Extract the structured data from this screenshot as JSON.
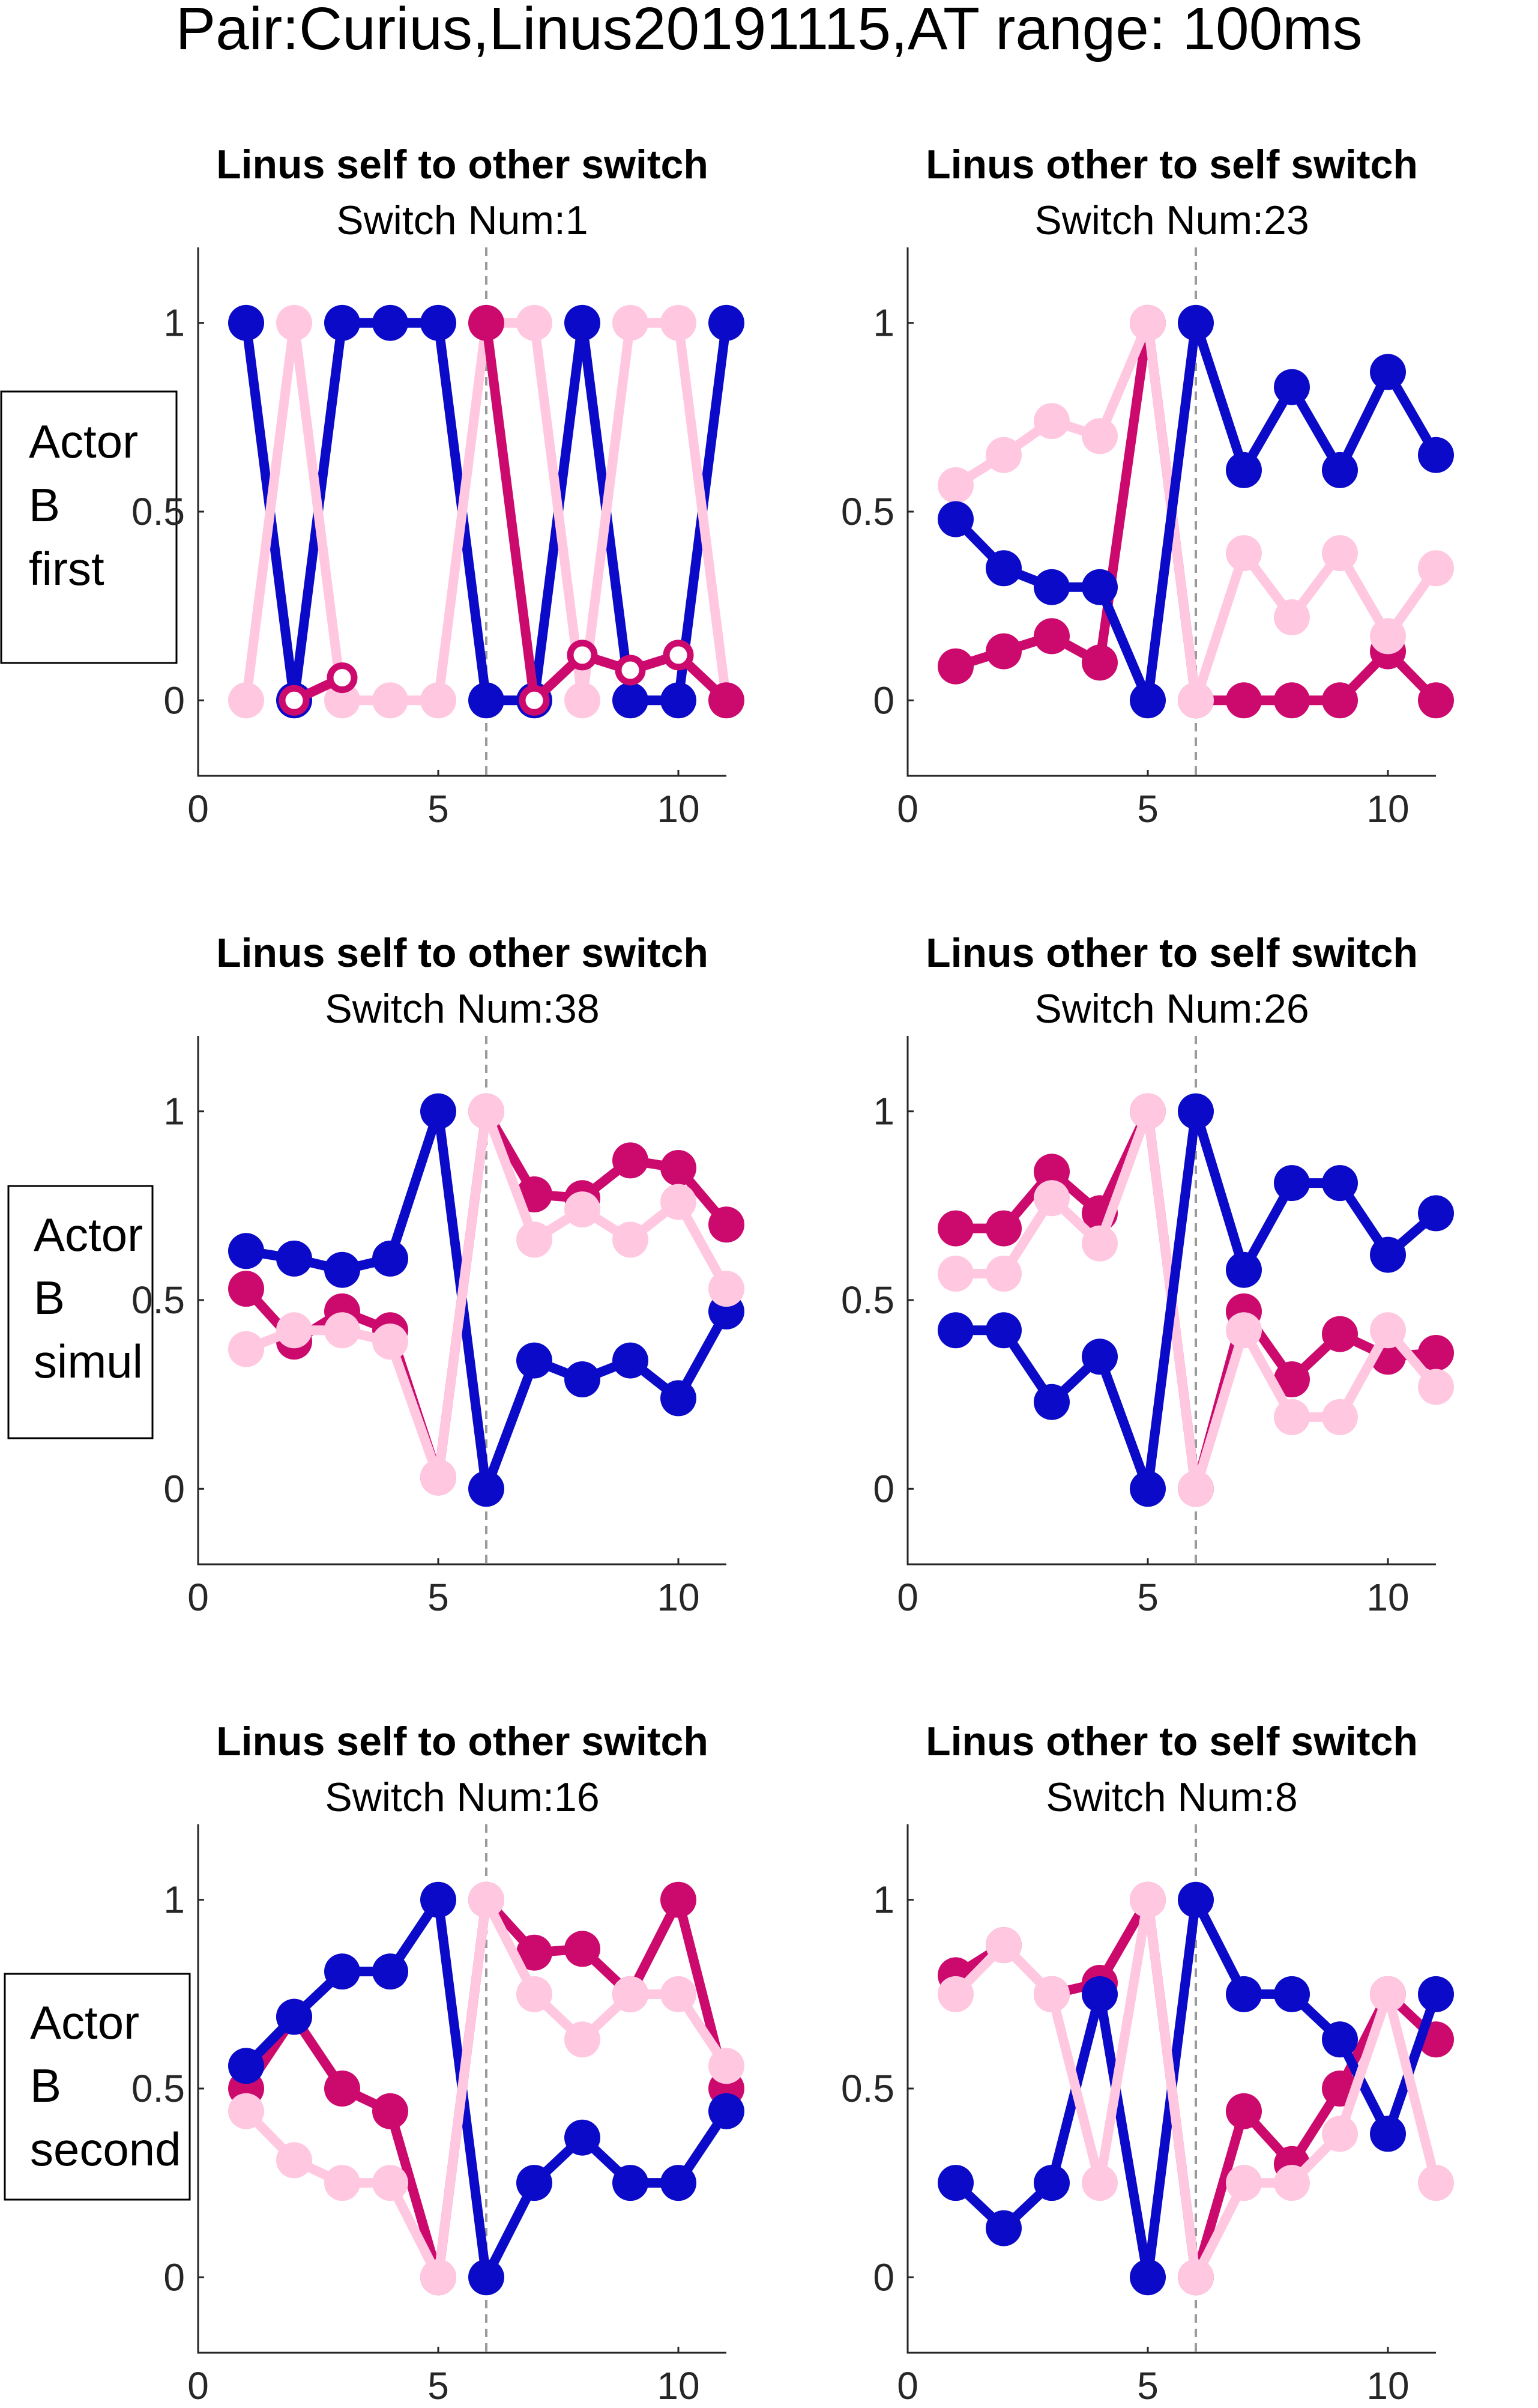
{
  "figure_title": "Pair:Curius,Linus20191115,AT range: 100ms",
  "row_labels": [
    [
      "Actor",
      "B",
      "first"
    ],
    [
      "Actor",
      "B",
      "simul"
    ],
    [
      "Actor",
      "B",
      "second"
    ]
  ],
  "colors": {
    "blue": "#0a0ac8",
    "magenta": "#cc0a6e",
    "pink": "#ffc8e0",
    "divider": "#9a9a9a"
  },
  "chart_data": [
    {
      "type": "line",
      "title": "Linus self to other switch",
      "subtitle": "Switch Num:1",
      "xlim": [
        0,
        11
      ],
      "ylim": [
        -0.2,
        1.2
      ],
      "xticks": [
        0,
        5,
        10
      ],
      "yticks": [
        "0",
        "0.5",
        "1"
      ],
      "x": [
        1,
        2,
        3,
        4,
        5,
        6,
        7,
        8,
        9,
        10,
        11
      ],
      "series": [
        {
          "color": "blue",
          "values": [
            1,
            0,
            1,
            1,
            1,
            0,
            0,
            1,
            0,
            0,
            1
          ]
        },
        {
          "color": "pink",
          "values": [
            0,
            1,
            0,
            0,
            0,
            1,
            1,
            0,
            1,
            1,
            0
          ]
        },
        {
          "color": "magenta",
          "values": [
            null,
            0,
            0.06,
            null,
            null,
            1,
            0,
            0.12,
            0.08,
            0.12,
            0
          ],
          "hollow_points": [
            2,
            3,
            7,
            8,
            9,
            10
          ]
        }
      ]
    },
    {
      "type": "line",
      "title": "Linus other to self switch",
      "subtitle": "Switch Num:23",
      "xlim": [
        0,
        11
      ],
      "ylim": [
        -0.2,
        1.2
      ],
      "xticks": [
        0,
        5,
        10
      ],
      "yticks": [
        "0",
        "0.5",
        "1"
      ],
      "x": [
        1,
        2,
        3,
        4,
        5,
        6,
        7,
        8,
        9,
        10,
        11
      ],
      "series": [
        {
          "color": "magenta",
          "values": [
            0.09,
            0.13,
            0.17,
            0.1,
            1,
            0,
            0,
            0,
            0,
            0.13,
            0
          ]
        },
        {
          "color": "pink",
          "values": [
            0.57,
            0.65,
            0.74,
            0.7,
            1,
            0,
            0.39,
            0.22,
            0.39,
            0.17,
            0.35
          ]
        },
        {
          "color": "blue",
          "values": [
            0.48,
            0.35,
            0.3,
            0.3,
            0,
            1,
            0.61,
            0.83,
            0.61,
            0.87,
            0.65
          ]
        }
      ]
    },
    {
      "type": "line",
      "title": "Linus self to other switch",
      "subtitle": "Switch Num:38",
      "xlim": [
        0,
        11
      ],
      "ylim": [
        -0.2,
        1.2
      ],
      "xticks": [
        0,
        5,
        10
      ],
      "yticks": [
        "0",
        "0.5",
        "1"
      ],
      "x": [
        1,
        2,
        3,
        4,
        5,
        6,
        7,
        8,
        9,
        10,
        11
      ],
      "series": [
        {
          "color": "magenta",
          "values": [
            0.53,
            0.39,
            0.47,
            0.42,
            0.03,
            1,
            0.78,
            0.77,
            0.87,
            0.85,
            0.7
          ]
        },
        {
          "color": "blue",
          "values": [
            0.63,
            0.61,
            0.58,
            0.61,
            1,
            0,
            0.34,
            0.29,
            0.34,
            0.24,
            0.47
          ]
        },
        {
          "color": "pink",
          "values": [
            0.37,
            0.42,
            0.42,
            0.39,
            0.03,
            1,
            0.66,
            0.74,
            0.66,
            0.76,
            0.53
          ]
        }
      ]
    },
    {
      "type": "line",
      "title": "Linus other to self switch",
      "subtitle": "Switch Num:26",
      "xlim": [
        0,
        11
      ],
      "ylim": [
        -0.2,
        1.2
      ],
      "xticks": [
        0,
        5,
        10
      ],
      "yticks": [
        "0",
        "0.5",
        "1"
      ],
      "x": [
        1,
        2,
        3,
        4,
        5,
        6,
        7,
        8,
        9,
        10,
        11
      ],
      "series": [
        {
          "color": "magenta",
          "values": [
            0.69,
            0.69,
            0.84,
            0.73,
            1,
            0,
            0.47,
            0.29,
            0.41,
            0.35,
            0.36
          ]
        },
        {
          "color": "pink",
          "values": [
            0.57,
            0.57,
            0.77,
            0.65,
            1,
            0,
            0.42,
            0.19,
            0.19,
            0.42,
            0.27
          ]
        },
        {
          "color": "blue",
          "values": [
            0.42,
            0.42,
            0.23,
            0.35,
            0,
            1,
            0.58,
            0.81,
            0.81,
            0.62,
            0.73
          ]
        }
      ]
    },
    {
      "type": "line",
      "title": "Linus self to other switch",
      "subtitle": "Switch Num:16",
      "xlim": [
        0,
        11
      ],
      "ylim": [
        -0.2,
        1.2
      ],
      "xticks": [
        0,
        5,
        10
      ],
      "yticks": [
        "0",
        "0.5",
        "1"
      ],
      "x": [
        1,
        2,
        3,
        4,
        5,
        6,
        7,
        8,
        9,
        10,
        11
      ],
      "series": [
        {
          "color": "magenta",
          "values": [
            0.5,
            0.69,
            0.5,
            0.44,
            0,
            1,
            0.86,
            0.87,
            0.75,
            1,
            0.5
          ]
        },
        {
          "color": "blue",
          "values": [
            0.56,
            0.69,
            0.81,
            0.81,
            1,
            0,
            0.25,
            0.37,
            0.25,
            0.25,
            0.44
          ]
        },
        {
          "color": "pink",
          "values": [
            0.44,
            0.31,
            0.25,
            0.25,
            0,
            1,
            0.75,
            0.63,
            0.75,
            0.75,
            0.56
          ]
        }
      ]
    },
    {
      "type": "line",
      "title": "Linus other to self switch",
      "subtitle": "Switch Num:8",
      "xlim": [
        0,
        11
      ],
      "ylim": [
        -0.2,
        1.2
      ],
      "xticks": [
        0,
        5,
        10
      ],
      "yticks": [
        "0",
        "0.5",
        "1"
      ],
      "x": [
        1,
        2,
        3,
        4,
        5,
        6,
        7,
        8,
        9,
        10,
        11
      ],
      "series": [
        {
          "color": "magenta",
          "values": [
            0.8,
            0.88,
            0.75,
            0.78,
            1,
            0,
            0.44,
            0.3,
            0.5,
            0.75,
            0.63
          ]
        },
        {
          "color": "blue",
          "values": [
            0.25,
            0.13,
            0.25,
            0.75,
            0,
            1,
            0.75,
            0.75,
            0.63,
            0.38,
            0.75
          ]
        },
        {
          "color": "pink",
          "values": [
            0.75,
            0.88,
            0.75,
            0.25,
            1,
            0,
            0.25,
            0.25,
            0.38,
            0.75,
            0.25
          ]
        }
      ]
    }
  ]
}
